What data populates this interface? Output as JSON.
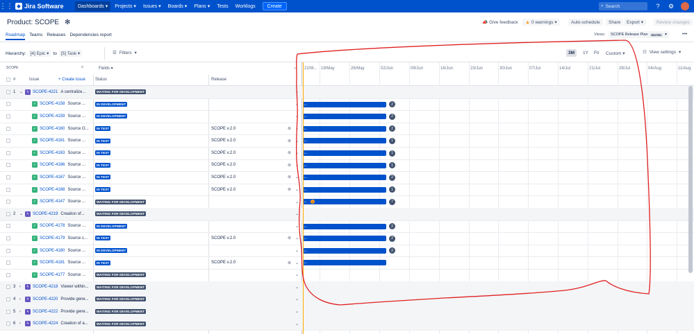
{
  "app": {
    "name": "Jira Software"
  },
  "topnav": {
    "items": [
      {
        "label": "Dashboards ▾",
        "active": true
      },
      {
        "label": "Projects ▾"
      },
      {
        "label": "Issues ▾"
      },
      {
        "label": "Boards ▾"
      },
      {
        "label": "Plans ▾"
      },
      {
        "label": "Tests"
      },
      {
        "label": "Worklogs"
      }
    ],
    "create_label": "Create",
    "search_placeholder": "Search"
  },
  "header": {
    "title": "Product: SCOPE",
    "feedback": "Give feedback",
    "warnings": "0 warnings",
    "auto_schedule": "Auto-schedule",
    "share": "Share",
    "export": "Export",
    "review": "Review changes"
  },
  "subtabs": [
    {
      "label": "Roadmap",
      "active": true
    },
    {
      "label": "Teams"
    },
    {
      "label": "Releases"
    },
    {
      "label": "Dependencies report"
    }
  ],
  "views": {
    "label": "Views:",
    "selected": "SCOPE Release Plan",
    "edited": "EDITED"
  },
  "filterbar": {
    "hierarchy_label": "Hierarchy:",
    "from": "[4] Epic",
    "to_label": "to",
    "to": "[5] Task",
    "filters": "Filters"
  },
  "zoom": [
    {
      "label": "3M",
      "active": true
    },
    {
      "label": "1Y"
    },
    {
      "label": "Fit"
    },
    {
      "label": "Custom ▾"
    }
  ],
  "view_settings": "View settings",
  "table": {
    "scope_label": "SCOPE",
    "col_num": "#",
    "col_issue": "Issue",
    "create_issue": "+ Create issue",
    "fields_label": "Fields",
    "col_status": "Status",
    "col_release": "Release",
    "months": [
      "22/M...",
      "19/May",
      "26/May",
      "02/Jun",
      "09/Jun",
      "16/Jun",
      "23/Jun",
      "30/Jun",
      "07/Jul",
      "14/Jul",
      "21/Jul",
      "28/Jul",
      "04/Aug",
      "11/Aug"
    ],
    "rows": [
      {
        "type": "epic",
        "num": "1",
        "expanded": true,
        "key": "SCOPE-4221",
        "summary": "A centralize...",
        "status": "WAITING FOR DEVELOPMENT",
        "release": "",
        "bar": null
      },
      {
        "type": "task",
        "num": "",
        "key": "SCOPE-4158",
        "summary": "Source ...",
        "status": "IN DEVELOPMENT",
        "release": "",
        "bar": {
          "badge": "2"
        }
      },
      {
        "type": "task",
        "num": "",
        "key": "SCOPE-4159",
        "summary": "Source ...",
        "status": "IN DEVELOPMENT",
        "release": "",
        "bar": {
          "badge": "2"
        }
      },
      {
        "type": "task",
        "num": "",
        "key": "SCOPE-4160",
        "summary": "Source O...",
        "status": "IN TEST",
        "release": "SCOPE v.2.0",
        "bar": {
          "badge": "2"
        }
      },
      {
        "type": "task",
        "num": "",
        "key": "SCOPE-4161",
        "summary": "Source ...",
        "status": "IN TEST",
        "release": "SCOPE v.2.0",
        "bar": {
          "badge": "1"
        }
      },
      {
        "type": "task",
        "num": "",
        "key": "SCOPE-4163",
        "summary": "Source ...",
        "status": "IN TEST",
        "release": "SCOPE v.2.0",
        "bar": {
          "badge": "1"
        }
      },
      {
        "type": "task",
        "num": "",
        "key": "SCOPE-4166",
        "summary": "Source ...",
        "status": "IN TEST",
        "release": "SCOPE v.2.0",
        "bar": {
          "badge": "1"
        }
      },
      {
        "type": "task",
        "num": "",
        "key": "SCOPE-4167",
        "summary": "Source ...",
        "status": "IN TEST",
        "release": "SCOPE v.2.0",
        "bar": {
          "badge": "2"
        }
      },
      {
        "type": "task",
        "num": "",
        "key": "SCOPE-4168",
        "summary": "Source ...",
        "status": "IN TEST",
        "release": "SCOPE v.2.0",
        "bar": {
          "badge": "1"
        }
      },
      {
        "type": "task",
        "num": "",
        "key": "SCOPE-4147",
        "summary": "Source ...",
        "status": "WAITING FOR DEVELOPMENT",
        "release": "",
        "bar": {
          "badge": "7",
          "inner": "1"
        }
      },
      {
        "type": "epic",
        "num": "2",
        "expanded": true,
        "key": "SCOPE-4219",
        "summary": "Creation of...",
        "status": "WAITING FOR DEVELOPMENT",
        "release": "",
        "bar": null
      },
      {
        "type": "task",
        "num": "",
        "key": "SCOPE-4178",
        "summary": "Source ...",
        "status": "IN DEVELOPMENT",
        "release": "",
        "bar": {
          "badge": "2"
        }
      },
      {
        "type": "task",
        "num": "",
        "key": "SCOPE-4179",
        "summary": "Source c...",
        "status": "IN TEST",
        "release": "SCOPE v.2.0",
        "bar": {
          "badge": "2"
        }
      },
      {
        "type": "task",
        "num": "",
        "key": "SCOPE-4180",
        "summary": "Source ...",
        "status": "IN DEVELOPMENT",
        "release": "",
        "bar": {
          "badge": "2"
        }
      },
      {
        "type": "task",
        "num": "",
        "key": "SCOPE-4181",
        "summary": "Source ...",
        "status": "IN TEST",
        "release": "SCOPE v.2.0",
        "bar": {
          "badge": ""
        }
      },
      {
        "type": "task",
        "num": "",
        "key": "SCOPE-4177",
        "summary": "Source ...",
        "status": "WAITING FOR DEVELOPMENT",
        "release": "",
        "bar": null
      },
      {
        "type": "epic",
        "num": "3",
        "expanded": false,
        "key": "SCOPE-4218",
        "summary": "Viewer within...",
        "status": "WAITING FOR DEVELOPMENT",
        "release": "",
        "bar": null
      },
      {
        "type": "epic",
        "num": "4",
        "expanded": false,
        "key": "SCOPE-4220",
        "summary": "Provide gene...",
        "status": "WAITING FOR DEVELOPMENT",
        "release": "",
        "bar": null
      },
      {
        "type": "epic",
        "num": "5",
        "expanded": false,
        "key": "SCOPE-4222",
        "summary": "Provide gene...",
        "status": "WAITING FOR DEVELOPMENT",
        "release": "",
        "bar": null
      },
      {
        "type": "epic",
        "num": "6",
        "expanded": false,
        "key": "SCOPE-4224",
        "summary": "Creation of a...",
        "status": "WAITING FOR DEVELOPMENT",
        "release": "",
        "bar": null
      }
    ]
  },
  "colors": {
    "brand": "#0052cc",
    "annotation": "#e02020"
  }
}
